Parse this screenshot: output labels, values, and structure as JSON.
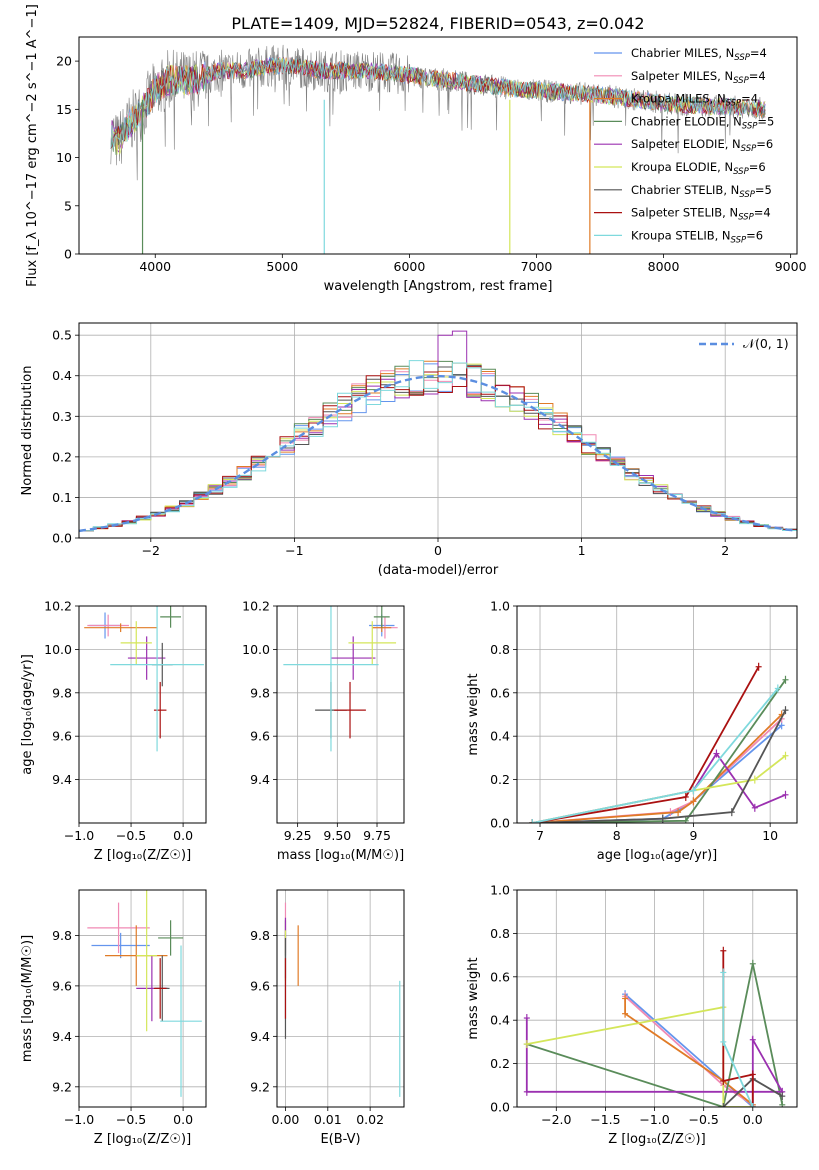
{
  "figure_title": "PLATE=1409, MJD=52824, FIBERID=0543, z=0.042",
  "colors": {
    "chabrier_miles": "#6495ed",
    "salpeter_miles": "#f08ab4",
    "kroupa_miles": "#e07b27",
    "chabrier_elodie": "#5a8c5a",
    "salpeter_elodie": "#9b30b0",
    "kroupa_elodie": "#d4e65a",
    "chabrier_stelib": "#555555",
    "salpeter_stelib": "#aa1111",
    "kroupa_stelib": "#7fd9dd",
    "gaussian": "#5b8ee0",
    "grid": "#b0b0b0"
  },
  "chart_data": [
    {
      "id": "spectrum",
      "type": "line",
      "xlabel": "wavelength [Angstrom, rest frame]",
      "ylabel": "Flux [f_λ 10^−17 erg cm^−2 s^−1 A^−1]",
      "xlim": [
        3400,
        9050
      ],
      "ylim": [
        0,
        22.5
      ],
      "xticks": [
        4000,
        5000,
        6000,
        7000,
        8000,
        9000
      ],
      "yticks": [
        0,
        5,
        10,
        15,
        20
      ],
      "grid": false,
      "legend_position": "top-right",
      "legend": [
        {
          "key": "chabrier_miles",
          "label": "Chabrier MILES, N",
          "sub": "SSP",
          "tail": "=4"
        },
        {
          "key": "salpeter_miles",
          "label": "Salpeter MILES, N",
          "sub": "SSP",
          "tail": "=4"
        },
        {
          "key": "kroupa_miles",
          "label": "Kroupa MILES, N",
          "sub": "SSP",
          "tail": "=4"
        },
        {
          "key": "chabrier_elodie",
          "label": "Chabrier ELODIE, N",
          "sub": "SSP",
          "tail": "=5"
        },
        {
          "key": "salpeter_elodie",
          "label": "Salpeter ELODIE, N",
          "sub": "SSP",
          "tail": "=6"
        },
        {
          "key": "kroupa_elodie",
          "label": "Kroupa ELODIE, N",
          "sub": "SSP",
          "tail": "=6"
        },
        {
          "key": "chabrier_stelib",
          "label": "Chabrier STELIB, N",
          "sub": "SSP",
          "tail": "=5"
        },
        {
          "key": "salpeter_stelib",
          "label": "Salpeter STELIB, N",
          "sub": "SSP",
          "tail": "=4"
        },
        {
          "key": "kroupa_stelib",
          "label": "Kroupa STELIB, N",
          "sub": "SSP",
          "tail": "=6"
        }
      ],
      "continuum": [
        [
          3650,
          12.5
        ],
        [
          3700,
          11.5
        ],
        [
          3800,
          13.5
        ],
        [
          3900,
          15
        ],
        [
          4000,
          17
        ],
        [
          4100,
          18
        ],
        [
          4200,
          18
        ],
        [
          4300,
          18
        ],
        [
          4500,
          19
        ],
        [
          4700,
          19
        ],
        [
          4900,
          19.5
        ],
        [
          5100,
          19.5
        ],
        [
          5300,
          19
        ],
        [
          5500,
          19
        ],
        [
          5700,
          19
        ],
        [
          6000,
          18.5
        ],
        [
          6300,
          18
        ],
        [
          6600,
          17.5
        ],
        [
          6900,
          17
        ],
        [
          7200,
          16.8
        ],
        [
          7500,
          16.5
        ],
        [
          7800,
          16
        ],
        [
          8100,
          15.5
        ],
        [
          8400,
          15.3
        ],
        [
          8700,
          15.2
        ],
        [
          8800,
          15
        ]
      ],
      "dropouts": [
        {
          "key": "chabrier_elodie",
          "x": 3900
        },
        {
          "key": "kroupa_stelib",
          "x": 5330
        },
        {
          "key": "kroupa_elodie",
          "x": 6790
        },
        {
          "key": "kroupa_miles",
          "x": 7420
        }
      ]
    },
    {
      "id": "residuals",
      "type": "line",
      "xlabel": "(data-model)/error",
      "ylabel": "Normed distribution",
      "xlim": [
        -2.5,
        2.5
      ],
      "ylim": [
        0,
        0.53
      ],
      "xticks": [
        -2,
        -1,
        0,
        1,
        2
      ],
      "yticks": [
        0.0,
        0.1,
        0.2,
        0.3,
        0.4,
        0.5
      ],
      "grid": true,
      "legend_position": "top-right",
      "legend_label": "𝒩(0, 1)",
      "bin_width": 0.1,
      "highlight_bins": {
        "salpeter_elodie": [
          [
            0,
            0.5
          ],
          [
            0.1,
            0.51
          ]
        ]
      }
    },
    {
      "id": "age_vs_Z",
      "type": "scatter",
      "xlabel": "Z [log₁₀(Z/Z☉)]",
      "ylabel": "age  [log₁₀(age/yr)]",
      "xlim": [
        -1.0,
        0.22
      ],
      "ylim": [
        9.2,
        10.2
      ],
      "xticks": [
        -1.0,
        -0.5,
        0.0
      ],
      "yticks": [
        9.4,
        9.6,
        9.8,
        10.0,
        10.2
      ],
      "grid": true,
      "points": [
        {
          "key": "chabrier_miles",
          "x": -0.75,
          "y": 10.11,
          "xerr": 0.15,
          "yerr": 0.06
        },
        {
          "key": "salpeter_miles",
          "x": -0.72,
          "y": 10.11,
          "xerr": 0.2,
          "yerr": 0.05
        },
        {
          "key": "kroupa_miles",
          "x": -0.6,
          "y": 10.1,
          "xerr": 0.35,
          "yerr": 0.02
        },
        {
          "key": "chabrier_elodie",
          "x": -0.12,
          "y": 10.15,
          "xerr": 0.1,
          "yerr": 0.05
        },
        {
          "key": "salpeter_elodie",
          "x": -0.35,
          "y": 9.96,
          "xerr": 0.18,
          "yerr": 0.1
        },
        {
          "key": "kroupa_elodie",
          "x": -0.45,
          "y": 10.03,
          "xerr": 0.15,
          "yerr": 0.1
        },
        {
          "key": "chabrier_stelib",
          "x": -0.2,
          "y": 9.93,
          "xerr": 0.1,
          "yerr": 0.1
        },
        {
          "key": "salpeter_stelib",
          "x": -0.22,
          "y": 9.72,
          "xerr": 0.06,
          "yerr": 0.13
        },
        {
          "key": "kroupa_stelib",
          "x": -0.25,
          "y": 9.93,
          "xerr": 0.45,
          "yerr": 0.4
        }
      ]
    },
    {
      "id": "age_vs_mass",
      "type": "scatter",
      "xlabel": "mass [log₁₀(M/M☉)]",
      "ylabel": "",
      "xlim": [
        9.12,
        9.92
      ],
      "ylim": [
        9.2,
        10.2
      ],
      "xticks": [
        9.25,
        9.5,
        9.75
      ],
      "yticks": [
        9.4,
        9.6,
        9.8,
        10.0,
        10.2
      ],
      "grid": true,
      "points": [
        {
          "key": "chabrier_miles",
          "x": 9.78,
          "y": 10.11,
          "xerr": 0.08,
          "yerr": 0.05
        },
        {
          "key": "salpeter_miles",
          "x": 9.8,
          "y": 10.1,
          "xerr": 0.08,
          "yerr": 0.05
        },
        {
          "key": "kroupa_miles",
          "x": 9.78,
          "y": 10.1,
          "xerr": 0.06,
          "yerr": 0.02
        },
        {
          "key": "chabrier_elodie",
          "x": 9.78,
          "y": 10.15,
          "xerr": 0.05,
          "yerr": 0.05
        },
        {
          "key": "salpeter_elodie",
          "x": 9.6,
          "y": 9.96,
          "xerr": 0.14,
          "yerr": 0.1
        },
        {
          "key": "kroupa_elodie",
          "x": 9.72,
          "y": 10.03,
          "xerr": 0.15,
          "yerr": 0.1
        },
        {
          "key": "chabrier_stelib",
          "x": 9.46,
          "y": 9.72,
          "xerr": 0.1,
          "yerr": 0.13
        },
        {
          "key": "salpeter_stelib",
          "x": 9.58,
          "y": 9.72,
          "xerr": 0.1,
          "yerr": 0.13
        },
        {
          "key": "kroupa_stelib",
          "x": 9.46,
          "y": 9.93,
          "xerr": 0.3,
          "yerr": 0.4
        }
      ]
    },
    {
      "id": "weight_vs_age",
      "type": "line",
      "xlabel": "age  [log₁₀(age/yr)]",
      "ylabel": "mass weight",
      "xlim": [
        6.7,
        10.35
      ],
      "ylim": [
        0,
        1.0
      ],
      "xticks": [
        7,
        8,
        9,
        10
      ],
      "yticks": [
        0.0,
        0.2,
        0.4,
        0.6,
        0.8,
        1.0
      ],
      "grid": true,
      "series": [
        {
          "key": "chabrier_miles",
          "points": [
            [
              6.9,
              0.0
            ],
            [
              8.6,
              0.02
            ],
            [
              9.0,
              0.1
            ],
            [
              10.15,
              0.45
            ]
          ]
        },
        {
          "key": "salpeter_miles",
          "points": [
            [
              6.9,
              0.0
            ],
            [
              8.7,
              0.05
            ],
            [
              9.0,
              0.1
            ],
            [
              10.15,
              0.48
            ]
          ]
        },
        {
          "key": "kroupa_miles",
          "points": [
            [
              6.9,
              0.0
            ],
            [
              8.8,
              0.05
            ],
            [
              9.0,
              0.1
            ],
            [
              10.15,
              0.5
            ]
          ]
        },
        {
          "key": "chabrier_elodie",
          "points": [
            [
              6.9,
              0.0
            ],
            [
              8.9,
              0.01
            ],
            [
              10.2,
              0.66
            ]
          ]
        },
        {
          "key": "salpeter_elodie",
          "points": [
            [
              6.9,
              0.0
            ],
            [
              9.0,
              0.15
            ],
            [
              9.3,
              0.32
            ],
            [
              9.8,
              0.07
            ],
            [
              10.2,
              0.13
            ]
          ]
        },
        {
          "key": "kroupa_elodie",
          "points": [
            [
              6.9,
              0.0
            ],
            [
              9.0,
              0.15
            ],
            [
              9.8,
              0.2
            ],
            [
              10.2,
              0.31
            ]
          ]
        },
        {
          "key": "chabrier_stelib",
          "points": [
            [
              6.9,
              0.0
            ],
            [
              8.6,
              0.02
            ],
            [
              9.5,
              0.05
            ],
            [
              10.2,
              0.52
            ]
          ]
        },
        {
          "key": "salpeter_stelib",
          "points": [
            [
              6.9,
              0.0
            ],
            [
              8.9,
              0.12
            ],
            [
              9.85,
              0.72
            ]
          ]
        },
        {
          "key": "kroupa_stelib",
          "points": [
            [
              6.9,
              0.0
            ],
            [
              9.0,
              0.15
            ],
            [
              10.1,
              0.62
            ]
          ]
        }
      ]
    },
    {
      "id": "mass_vs_Z",
      "type": "scatter",
      "xlabel": "Z [log₁₀(Z/Z☉)]",
      "ylabel": "mass [log₁₀(M/M☉)]",
      "xlim": [
        -1.0,
        0.22
      ],
      "ylim": [
        9.12,
        9.98
      ],
      "xticks": [
        -1.0,
        -0.5,
        0.0
      ],
      "yticks": [
        9.2,
        9.4,
        9.6,
        9.8
      ],
      "grid": true,
      "points": [
        {
          "key": "chabrier_miles",
          "x": -0.6,
          "y": 9.76,
          "xerr": 0.28,
          "yerr": 0.05
        },
        {
          "key": "salpeter_miles",
          "x": -0.62,
          "y": 9.83,
          "xerr": 0.3,
          "yerr": 0.1
        },
        {
          "key": "kroupa_miles",
          "x": -0.45,
          "y": 9.72,
          "xerr": 0.3,
          "yerr": 0.12
        },
        {
          "key": "chabrier_elodie",
          "x": -0.12,
          "y": 9.79,
          "xerr": 0.12,
          "yerr": 0.07
        },
        {
          "key": "salpeter_elodie",
          "x": -0.3,
          "y": 9.59,
          "xerr": 0.15,
          "yerr": 0.13
        },
        {
          "key": "kroupa_elodie",
          "x": -0.35,
          "y": 9.72,
          "xerr": 0.1,
          "yerr": 0.3
        },
        {
          "key": "chabrier_stelib",
          "x": -0.2,
          "y": 9.59,
          "xerr": 0.07,
          "yerr": 0.13
        },
        {
          "key": "salpeter_stelib",
          "x": -0.22,
          "y": 9.59,
          "xerr": 0.06,
          "yerr": 0.12
        },
        {
          "key": "kroupa_stelib",
          "x": -0.02,
          "y": 9.46,
          "xerr": 0.2,
          "yerr": 0.3
        }
      ]
    },
    {
      "id": "mass_vs_ebv",
      "type": "scatter",
      "xlabel": "E(B-V)",
      "ylabel": "",
      "xlim": [
        -0.002,
        0.028
      ],
      "ylim": [
        9.12,
        9.98
      ],
      "xticks": [
        0.0,
        0.01,
        0.02
      ],
      "yticks": [
        9.2,
        9.4,
        9.6,
        9.8
      ],
      "grid": true,
      "points": [
        {
          "key": "chabrier_miles",
          "x": 0.0,
          "y": 9.76,
          "xerr": 0,
          "yerr": 0.05
        },
        {
          "key": "salpeter_miles",
          "x": 0.0,
          "y": 9.83,
          "xerr": 0,
          "yerr": 0.1
        },
        {
          "key": "kroupa_miles",
          "x": 0.003,
          "y": 9.72,
          "xerr": 0,
          "yerr": 0.12
        },
        {
          "key": "chabrier_elodie",
          "x": 0.0,
          "y": 9.79,
          "xerr": 0,
          "yerr": 0.07
        },
        {
          "key": "salpeter_elodie",
          "x": 0.0,
          "y": 9.75,
          "xerr": 0,
          "yerr": 0.12
        },
        {
          "key": "kroupa_elodie",
          "x": 0.0,
          "y": 9.72,
          "xerr": 0,
          "yerr": 0.1
        },
        {
          "key": "chabrier_stelib",
          "x": 0.0,
          "y": 9.59,
          "xerr": 0,
          "yerr": 0.2
        },
        {
          "key": "salpeter_stelib",
          "x": 0.0,
          "y": 9.59,
          "xerr": 0,
          "yerr": 0.12
        },
        {
          "key": "kroupa_stelib",
          "x": 0.027,
          "y": 9.39,
          "xerr": 0,
          "yerr": 0.23
        }
      ]
    },
    {
      "id": "weight_vs_Z",
      "type": "line",
      "xlabel": "Z [log₁₀(Z/Z☉)]",
      "ylabel": "mass weight",
      "xlim": [
        -2.4,
        0.45
      ],
      "ylim": [
        0,
        1.0
      ],
      "xticks": [
        -2.0,
        -1.5,
        -1.0,
        -0.5,
        0.0
      ],
      "yticks": [
        0.0,
        0.2,
        0.4,
        0.6,
        0.8,
        1.0
      ],
      "grid": true,
      "series": [
        {
          "key": "chabrier_miles",
          "points": [
            [
              -1.3,
              0.52
            ],
            [
              -0.3,
              0.12
            ],
            [
              0.0,
              0.0
            ]
          ]
        },
        {
          "key": "salpeter_miles",
          "points": [
            [
              -1.3,
              0.51
            ],
            [
              -0.3,
              0.1
            ],
            [
              0.0,
              0.01
            ]
          ]
        },
        {
          "key": "kroupa_miles",
          "points": [
            [
              -1.3,
              0.5
            ],
            [
              -1.3,
              0.43
            ],
            [
              -0.3,
              0.12
            ],
            [
              0.0,
              0.01
            ]
          ]
        },
        {
          "key": "chabrier_elodie",
          "points": [
            [
              -2.3,
              0.29
            ],
            [
              -0.3,
              0.0
            ],
            [
              0.0,
              0.66
            ],
            [
              0.3,
              0.01
            ]
          ]
        },
        {
          "key": "salpeter_elodie",
          "points": [
            [
              -2.3,
              0.41
            ],
            [
              -2.3,
              0.07
            ],
            [
              0.3,
              0.07
            ],
            [
              0.0,
              0.31
            ],
            [
              0.0,
              0.0
            ]
          ]
        },
        {
          "key": "kroupa_elodie",
          "points": [
            [
              -2.3,
              0.29
            ],
            [
              -0.3,
              0.46
            ],
            [
              -0.3,
              0.0
            ],
            [
              0.0,
              0.0
            ]
          ]
        },
        {
          "key": "chabrier_stelib",
          "points": [
            [
              -0.3,
              0.0
            ],
            [
              0.0,
              0.13
            ],
            [
              0.3,
              0.05
            ]
          ]
        },
        {
          "key": "salpeter_stelib",
          "points": [
            [
              -0.3,
              0.72
            ],
            [
              -0.3,
              0.12
            ],
            [
              0.0,
              0.15
            ],
            [
              0.0,
              0.0
            ]
          ]
        },
        {
          "key": "kroupa_stelib",
          "points": [
            [
              -0.3,
              0.62
            ],
            [
              -0.3,
              0.3
            ],
            [
              0.0,
              0.0
            ],
            [
              0.0,
              0.0
            ]
          ]
        }
      ]
    }
  ]
}
